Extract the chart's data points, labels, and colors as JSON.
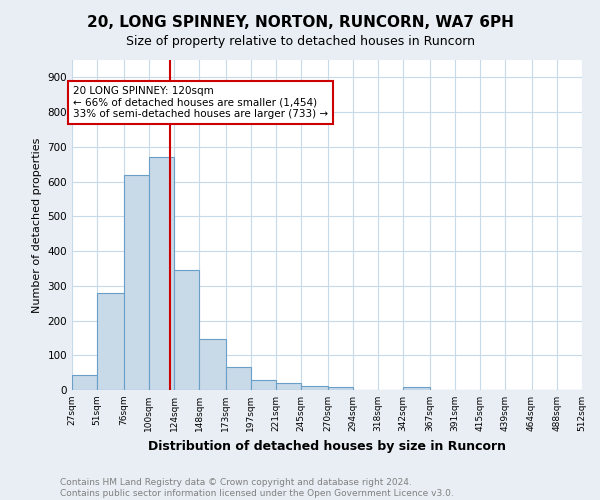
{
  "title1": "20, LONG SPINNEY, NORTON, RUNCORN, WA7 6PH",
  "title2": "Size of property relative to detached houses in Runcorn",
  "xlabel": "Distribution of detached houses by size in Runcorn",
  "ylabel": "Number of detached properties",
  "footnote": "Contains HM Land Registry data © Crown copyright and database right 2024.\nContains public sector information licensed under the Open Government Licence v3.0.",
  "bin_edges": [
    27,
    51,
    76,
    100,
    124,
    148,
    173,
    197,
    221,
    245,
    270,
    294,
    318,
    342,
    367,
    391,
    415,
    439,
    464,
    488,
    512
  ],
  "bar_heights": [
    42,
    278,
    620,
    670,
    345,
    148,
    65,
    30,
    20,
    12,
    10,
    0,
    0,
    8,
    0,
    0,
    0,
    0,
    0,
    0
  ],
  "bar_color": "#c8d9e8",
  "bar_edge_color": "#6aa0c7",
  "red_line_x": 120,
  "red_line_color": "#cc0000",
  "annotation_line1": "20 LONG SPINNEY: 120sqm",
  "annotation_line2": "← 66% of detached houses are smaller (1,454)",
  "annotation_line3": "33% of semi-detached houses are larger (733) →",
  "annotation_box_color": "#cc0000",
  "annotation_box_bg": "#ffffff",
  "ylim": [
    0,
    950
  ],
  "yticks": [
    0,
    100,
    200,
    300,
    400,
    500,
    600,
    700,
    800,
    900
  ],
  "tick_labels": [
    "27sqm",
    "51sqm",
    "76sqm",
    "100sqm",
    "124sqm",
    "148sqm",
    "173sqm",
    "197sqm",
    "221sqm",
    "245sqm",
    "270sqm",
    "294sqm",
    "318sqm",
    "342sqm",
    "367sqm",
    "391sqm",
    "415sqm",
    "439sqm",
    "464sqm",
    "488sqm",
    "512sqm"
  ],
  "background_color": "#e8eef4",
  "plot_background": "#ffffff",
  "grid_color": "#c8d9e8",
  "title1_fontsize": 11,
  "title2_fontsize": 9,
  "xlabel_fontsize": 9,
  "ylabel_fontsize": 8,
  "footnote_fontsize": 6.5
}
